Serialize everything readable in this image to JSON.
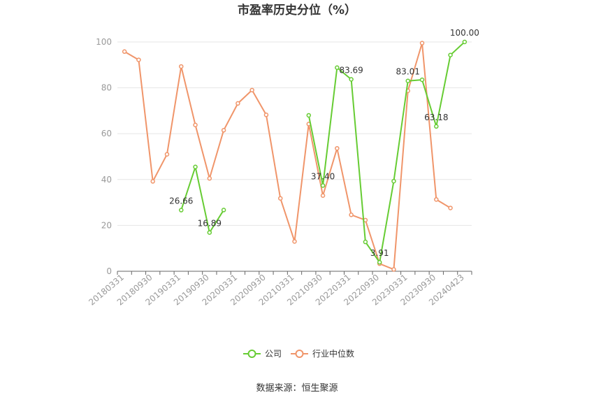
{
  "chart_data": {
    "type": "line",
    "title": "市盈率历史分位（%）",
    "ylim": [
      0,
      100
    ],
    "yticks": [
      0,
      20,
      40,
      60,
      80,
      100
    ],
    "grid": true,
    "legend_position": "bottom",
    "x": [
      "20180331",
      "20180630",
      "20180930",
      "20181231",
      "20190331",
      "20190630",
      "20190930",
      "20191231",
      "20200331",
      "20200630",
      "20200930",
      "20201231",
      "20210331",
      "20210630",
      "20210930",
      "20211231",
      "20220331",
      "20220630",
      "20220930",
      "20221231",
      "20230331",
      "20230630",
      "20230930",
      "20231231",
      "20240423"
    ],
    "xtick_labels": [
      "20180331",
      "20180930",
      "20190331",
      "20190930",
      "20200331",
      "20200930",
      "20210331",
      "20210930",
      "20220331",
      "20220930",
      "20230331",
      "20230930",
      "20240423"
    ],
    "series": [
      {
        "name": "公司",
        "color": "#66cc33",
        "values": [
          null,
          null,
          null,
          null,
          26.66,
          45.5,
          16.89,
          26.7,
          null,
          null,
          null,
          null,
          null,
          68.0,
          37.4,
          88.8,
          83.69,
          12.8,
          3.91,
          39.3,
          83.01,
          83.5,
          63.18,
          94.3,
          100.0
        ],
        "labels": {
          "4": "26.66",
          "6": "16.89",
          "14": "37.40",
          "16": "83.69",
          "18": "3.91",
          "20": "83.01",
          "22": "63.18",
          "24": "100.00"
        }
      },
      {
        "name": "行业中位数",
        "color": "#f0956a",
        "values": [
          95.8,
          92.2,
          39.2,
          51.0,
          89.3,
          63.8,
          40.5,
          61.5,
          73.2,
          79.0,
          68.2,
          31.8,
          13.0,
          64.2,
          33.0,
          53.6,
          24.6,
          22.3,
          3.3,
          0.8,
          78.7,
          99.5,
          31.3,
          27.6,
          null
        ]
      }
    ]
  },
  "source_text": "数据来源：恒生聚源"
}
